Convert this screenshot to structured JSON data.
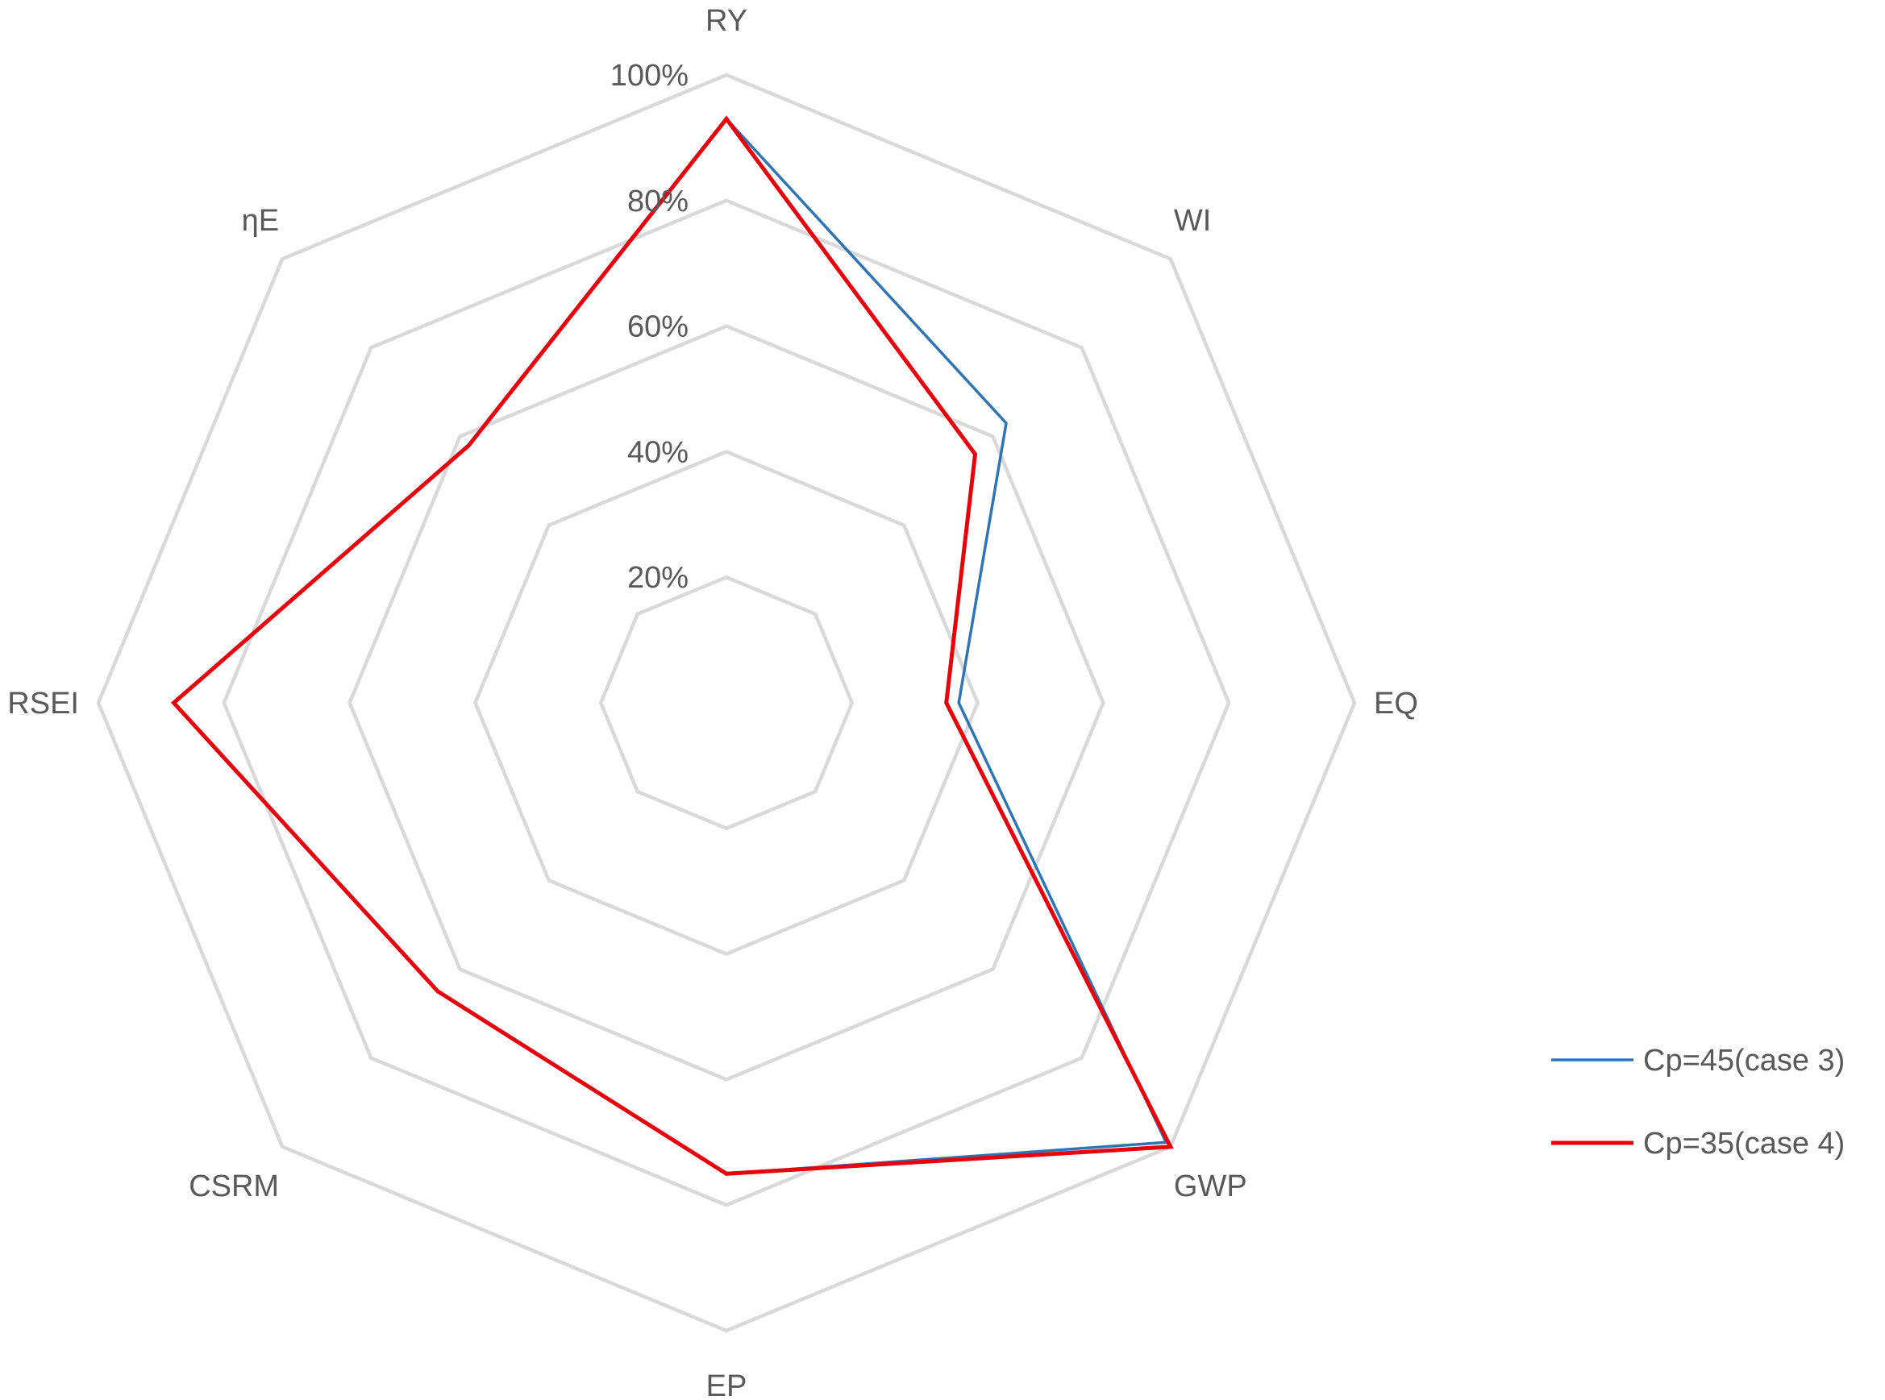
{
  "chart_data": {
    "type": "radar",
    "axes": [
      "RY",
      "WI",
      "EQ",
      "GWP",
      "EP",
      "CSRM",
      "RSEI",
      "ηE"
    ],
    "tick_labels": [
      "20%",
      "40%",
      "60%",
      "80%",
      "100%"
    ],
    "ticks": [
      20,
      40,
      60,
      80,
      100
    ],
    "rlim": [
      0,
      100
    ],
    "grid": true,
    "legend_position": "right",
    "series": [
      {
        "name": "Cp=45(case 3)",
        "color": "#2E75B6",
        "values": [
          93,
          63,
          37,
          99,
          75,
          65,
          88,
          58
        ]
      },
      {
        "name": "Cp=35(case 4)",
        "color": "#E8000B",
        "values": [
          93,
          56,
          35,
          100,
          75,
          65,
          88,
          58
        ]
      }
    ]
  }
}
